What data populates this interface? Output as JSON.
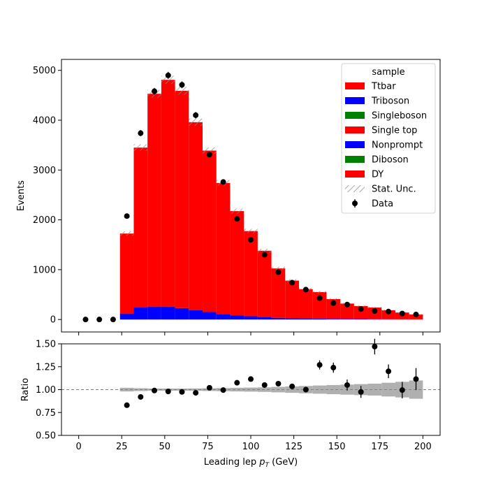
{
  "chart_data": [
    {
      "type": "bar",
      "stacked": true,
      "xlabel": "",
      "ylabel": "Events",
      "xlim": [
        -10,
        210
      ],
      "ylim": [
        -250,
        5220
      ],
      "yticks": [
        0,
        1000,
        2000,
        3000,
        4000,
        5000
      ],
      "bin_edges": [
        0,
        8,
        16,
        24,
        32,
        40,
        48,
        56,
        64,
        72,
        80,
        88,
        96,
        104,
        112,
        120,
        128,
        136,
        144,
        152,
        160,
        168,
        176,
        184,
        192,
        200
      ],
      "legend": {
        "title": "sample",
        "placement": "upper right",
        "entries": [
          "Ttbar",
          "Triboson",
          "Singleboson",
          "Single top",
          "Nonprompt",
          "Diboson",
          "DY",
          "Stat. Unc.",
          "Data"
        ]
      },
      "series": [
        {
          "name": "Nonprompt",
          "color": "#0000ff",
          "values": [
            0,
            0,
            0,
            120,
            240,
            260,
            260,
            230,
            190,
            150,
            110,
            85,
            65,
            50,
            35,
            28,
            22,
            18,
            14,
            11,
            9,
            7,
            6,
            5,
            4
          ]
        },
        {
          "name": "Ttbar",
          "color": "#ff0000",
          "values": [
            0,
            0,
            0,
            1605,
            3210,
            4270,
            4550,
            4360,
            3770,
            3240,
            2630,
            2090,
            1710,
            1330,
            990,
            752,
            588,
            532,
            396,
            309,
            261,
            233,
            179,
            135,
            96
          ]
        }
      ],
      "stat_unc_total": [
        0,
        0,
        0,
        1725,
        3450,
        4530,
        4810,
        4590,
        3960,
        3390,
        2740,
        2175,
        1775,
        1380,
        1025,
        780,
        610,
        550,
        410,
        320,
        270,
        240,
        185,
        140,
        100
      ],
      "data": {
        "name": "Data",
        "x": [
          4,
          12,
          20,
          28,
          36,
          44,
          52,
          60,
          68,
          76,
          84,
          92,
          100,
          108,
          116,
          124,
          132,
          140,
          148,
          156,
          164,
          172,
          180,
          188,
          196
        ],
        "y": [
          0,
          0,
          0,
          2075,
          3740,
          4580,
          4900,
          4710,
          4100,
          3310,
          2760,
          2020,
          1600,
          1300,
          950,
          740,
          600,
          430,
          330,
          300,
          210,
          170,
          160,
          120,
          100
        ],
        "color": "#000000"
      }
    },
    {
      "type": "scatter",
      "xlabel": "Leading lep p_T (GeV)",
      "ylabel": "Ratio",
      "xlim": [
        -10,
        210
      ],
      "ylim": [
        0.5,
        1.5
      ],
      "xticks": [
        0,
        25,
        50,
        75,
        100,
        125,
        150,
        175,
        200
      ],
      "yticks": [
        0.5,
        0.75,
        1.0,
        1.25,
        1.5
      ],
      "reference_line": 1.0,
      "points": {
        "x": [
          28,
          36,
          44,
          52,
          60,
          68,
          76,
          84,
          92,
          100,
          108,
          116,
          124,
          132,
          140,
          148,
          156,
          164,
          172,
          180,
          188,
          196
        ],
        "y": [
          0.83,
          0.92,
          0.99,
          0.98,
          0.975,
          0.965,
          1.02,
          0.995,
          1.075,
          1.115,
          1.05,
          1.065,
          1.035,
          1.0,
          1.27,
          1.24,
          1.05,
          0.975,
          1.47,
          1.2,
          0.995,
          1.115
        ],
        "err": [
          0.01,
          0.01,
          0.01,
          0.01,
          0.01,
          0.01,
          0.012,
          0.015,
          0.017,
          0.02,
          0.022,
          0.025,
          0.028,
          0.03,
          0.05,
          0.055,
          0.06,
          0.065,
          0.085,
          0.075,
          0.09,
          0.12
        ]
      },
      "unc_band_half_width": [
        0,
        0,
        0,
        0.02,
        0.015,
        0.012,
        0.012,
        0.012,
        0.013,
        0.015,
        0.017,
        0.02,
        0.022,
        0.025,
        0.03,
        0.035,
        0.04,
        0.045,
        0.05,
        0.055,
        0.06,
        0.065,
        0.075,
        0.085,
        0.1
      ]
    }
  ]
}
